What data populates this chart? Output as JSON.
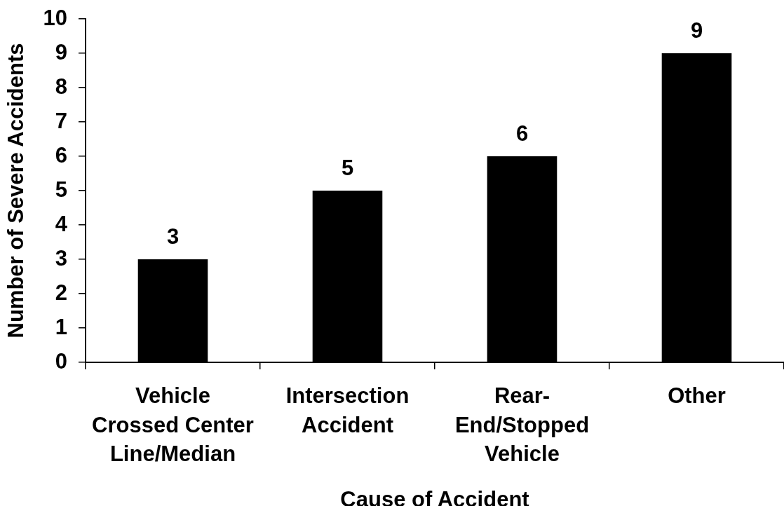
{
  "chart_data": {
    "type": "bar",
    "xlabel": "Cause of Accident",
    "ylabel": "Number of Severe Accidents",
    "categories": [
      "Vehicle\nCrossed Center\nLine/Median",
      "Intersection\nAccident",
      "Rear-\nEnd/Stopped\nVehicle",
      "Other"
    ],
    "values": [
      3,
      5,
      6,
      9
    ],
    "color": "#000000",
    "ylim": [
      0,
      10
    ],
    "yticks": [
      0,
      1,
      2,
      3,
      4,
      5,
      6,
      7,
      8,
      9,
      10
    ],
    "data_labels": true
  }
}
